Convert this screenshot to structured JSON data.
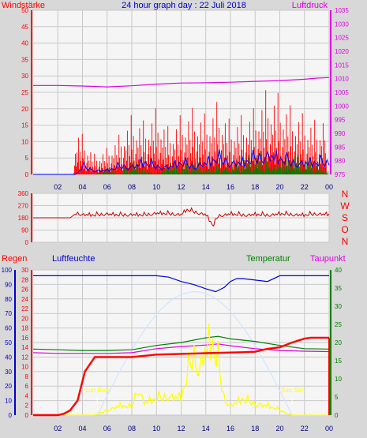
{
  "chart_data": [
    {
      "type": "line",
      "title": "24 hour graph day : 22 Juli 2018",
      "left_label": "Windstärke",
      "right_label": "Luftdruck",
      "x_ticks": [
        "02",
        "04",
        "06",
        "08",
        "10",
        "12",
        "14",
        "16",
        "18",
        "20",
        "22",
        "00"
      ],
      "x_range_hours": [
        0,
        24
      ],
      "y_left_ticks": [
        "0",
        "5",
        "10",
        "15",
        "20",
        "25",
        "30",
        "35",
        "40",
        "45",
        "50"
      ],
      "y_left_range": [
        0,
        50
      ],
      "y_right_ticks": [
        "975",
        "980",
        "985",
        "990",
        "995",
        "1000",
        "1005",
        "1010",
        "1015",
        "1020",
        "1025",
        "1030",
        "1035"
      ],
      "y_right_range": [
        975,
        1035
      ],
      "grid": true,
      "series": [
        {
          "key": "pressure",
          "axis": "right",
          "color": "#e000e0",
          "x": [
            0,
            2,
            4,
            6,
            8,
            10,
            12,
            14,
            16,
            18,
            20,
            22,
            23,
            24
          ],
          "values": [
            1007.5,
            1007.5,
            1007.3,
            1007.0,
            1007.4,
            1008.0,
            1008.4,
            1008.5,
            1008.7,
            1009.0,
            1009.3,
            1009.8,
            1010.2,
            1010.4
          ]
        },
        {
          "key": "gust",
          "axis": "left",
          "color": "#ff0000",
          "x": [
            0,
            3.2,
            3.5,
            4,
            5,
            6,
            7,
            8,
            9,
            10,
            11,
            12,
            13,
            14,
            15,
            16,
            17,
            18,
            19,
            20,
            21,
            22,
            23,
            23.8,
            24
          ],
          "values": [
            0,
            0,
            7,
            6,
            3,
            4,
            6,
            9,
            8,
            10,
            7,
            9,
            10,
            9,
            11,
            8,
            9,
            10,
            13,
            12,
            10,
            9,
            8,
            10,
            6
          ]
        },
        {
          "key": "wind_avg",
          "axis": "left",
          "color": "#0000ff",
          "x": [
            0,
            3.5,
            4,
            5,
            6,
            7,
            8,
            9,
            10,
            11,
            12,
            13,
            14,
            15,
            16,
            17,
            18,
            19,
            20,
            21,
            22,
            23,
            24
          ],
          "values": [
            0,
            0,
            2,
            1,
            1,
            2,
            2,
            3,
            2,
            2,
            3,
            2,
            3,
            4,
            3,
            3,
            4,
            5,
            4,
            3,
            3,
            3,
            3
          ]
        },
        {
          "key": "wind_calm",
          "axis": "left",
          "color": "#008000",
          "x": [
            0,
            5,
            6,
            7,
            8,
            9,
            10,
            11,
            12,
            13,
            14,
            15,
            16,
            17,
            18,
            19,
            20,
            21,
            22,
            23,
            24
          ],
          "values": [
            0,
            0,
            1,
            0,
            2,
            1,
            0,
            2,
            1,
            2,
            1,
            2,
            1,
            2,
            3,
            3,
            2,
            3,
            2,
            2,
            1
          ]
        }
      ]
    },
    {
      "type": "line",
      "left_ticks": [
        "0",
        "90",
        "180",
        "270",
        "360"
      ],
      "y_range": [
        0,
        360
      ],
      "right_labels": [
        "N",
        "W",
        "S",
        "O",
        "N"
      ],
      "x_range_hours": [
        0,
        24
      ],
      "grid": true,
      "series": [
        {
          "key": "direction",
          "color": "#cc0000",
          "x": [
            0,
            3,
            3.5,
            4,
            5,
            6,
            7,
            8,
            9,
            10,
            11,
            12,
            12.5,
            13,
            14,
            14.6,
            15,
            16,
            17,
            18,
            19,
            20,
            21,
            22,
            23,
            24
          ],
          "values": [
            180,
            180,
            215,
            205,
            200,
            210,
            200,
            205,
            200,
            215,
            210,
            205,
            240,
            225,
            205,
            120,
            195,
            210,
            200,
            205,
            200,
            210,
            205,
            200,
            210,
            205
          ]
        }
      ]
    },
    {
      "type": "line",
      "labels": {
        "rain": "Regen",
        "humidity": "Luftfeuchte",
        "temperature": "Temperatur",
        "dewpoint": "Taupunkt"
      },
      "x_ticks": [
        "02",
        "04",
        "06",
        "08",
        "10",
        "12",
        "14",
        "16",
        "18",
        "20",
        "22",
        "00"
      ],
      "x_range_hours": [
        0,
        24
      ],
      "rain_ticks": [
        "0",
        "2",
        "4",
        "6",
        "8",
        "10",
        "12",
        "14",
        "16",
        "18",
        "20",
        "22",
        "24",
        "26",
        "28",
        "30"
      ],
      "rain_range": [
        0,
        30
      ],
      "humidity_ticks": [
        "0",
        "10",
        "20",
        "30",
        "40",
        "50",
        "60",
        "70",
        "80",
        "90",
        "100"
      ],
      "humidity_range": [
        0,
        100
      ],
      "temp_ticks": [
        "0",
        "5",
        "10",
        "15",
        "20",
        "25",
        "30",
        "35",
        "40"
      ],
      "temp_range": [
        0,
        40
      ],
      "grid": true,
      "annotations": [
        {
          "text": "Sun Rise",
          "x_hour": 5.2,
          "color": "#ffff00"
        },
        {
          "text": "Sun Set",
          "x_hour": 21.0,
          "color": "#ffff00"
        }
      ],
      "series": [
        {
          "key": "sun_curve",
          "axis": "humidity",
          "color": "#cfe6ff",
          "x": [
            5.2,
            7,
            9,
            11,
            13,
            15,
            17,
            19,
            21
          ],
          "values": [
            0,
            30,
            60,
            79,
            85,
            79,
            60,
            30,
            0
          ]
        },
        {
          "key": "humidity",
          "axis": "humidity",
          "color": "#0000dd",
          "x": [
            0,
            8,
            10,
            11,
            12,
            13,
            14,
            14.8,
            15.5,
            16,
            16.5,
            17,
            18,
            19,
            20,
            22,
            24
          ],
          "values": [
            96,
            96,
            96,
            95,
            92,
            90,
            87,
            85,
            88,
            92,
            94,
            94,
            93,
            92,
            96,
            96,
            96
          ]
        },
        {
          "key": "temperature",
          "axis": "temp",
          "color": "#008000",
          "x": [
            0,
            2,
            4,
            6,
            8,
            10,
            12,
            14,
            15,
            16,
            18,
            20,
            22,
            24
          ],
          "values": [
            18.2,
            18,
            17.8,
            17.8,
            18,
            19.2,
            20,
            21.3,
            21.7,
            21.0,
            20.3,
            19.2,
            18.3,
            18.2
          ]
        },
        {
          "key": "dewpoint",
          "axis": "temp",
          "color": "#e000e0",
          "x": [
            0,
            2,
            4,
            6,
            8,
            10,
            12,
            14,
            15,
            16,
            18,
            20,
            22,
            24
          ],
          "values": [
            17.2,
            17,
            17,
            17,
            17.2,
            18.3,
            18.9,
            19.3,
            19.6,
            19.1,
            18.3,
            17.8,
            17.6,
            17.5
          ]
        },
        {
          "key": "solar",
          "axis": "humidity",
          "color": "#ffff00",
          "x": [
            0,
            5,
            6,
            7,
            8,
            8.5,
            9,
            10,
            11,
            12,
            13,
            13.5,
            14,
            14.5,
            15,
            15.5,
            16,
            17,
            18,
            19,
            20,
            21,
            24
          ],
          "values": [
            0,
            0,
            3,
            6,
            5,
            18,
            8,
            10,
            12,
            11,
            38,
            30,
            42,
            45,
            32,
            10,
            6,
            10,
            7,
            6,
            3,
            0,
            0
          ]
        },
        {
          "key": "rain",
          "axis": "rain",
          "color": "#ff0000",
          "x": [
            0,
            2,
            2.5,
            3,
            3.6,
            4.2,
            5,
            8,
            10,
            14,
            17,
            18,
            18.5,
            19,
            20,
            21,
            22,
            22.5,
            23.5,
            24
          ],
          "values": [
            0,
            0,
            0.3,
            1,
            3,
            9,
            12,
            12,
            12.5,
            12.8,
            13,
            13.1,
            13.4,
            13.7,
            14,
            15,
            15.8,
            16,
            16,
            16
          ]
        }
      ]
    }
  ]
}
